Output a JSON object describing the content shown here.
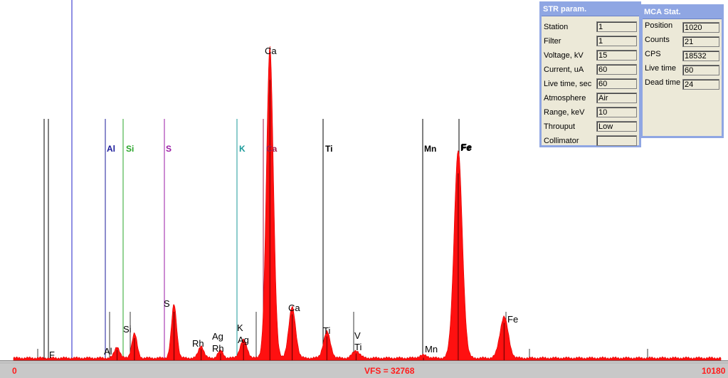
{
  "status_bar": {
    "left": "0",
    "center": "VFS = 32768",
    "right": "10180"
  },
  "str_param": {
    "title": "STR param.",
    "rows": [
      {
        "label": "Station",
        "value": "1"
      },
      {
        "label": "Filter",
        "value": "1"
      },
      {
        "label": "Voltage, kV",
        "value": "15"
      },
      {
        "label": "Current, uA",
        "value": "60"
      },
      {
        "label": "Live time, sec",
        "value": "60"
      },
      {
        "label": "Atmosphere",
        "value": "Air"
      },
      {
        "label": "Range, keV",
        "value": "10"
      },
      {
        "label": "Throuput",
        "value": "Low"
      },
      {
        "label": "Collimator",
        "value": ""
      }
    ]
  },
  "mca_stat": {
    "title": "MCA Stat.",
    "rows": [
      {
        "label": "Position",
        "value": "1020"
      },
      {
        "label": "Counts",
        "value": "21"
      },
      {
        "label": "CPS",
        "value": "18532"
      },
      {
        "label": "Live time",
        "value": "60"
      },
      {
        "label": "Dead time",
        "value": "24"
      }
    ]
  },
  "element_markers": [
    {
      "symbol": "Al",
      "color": "#1a1a9a"
    },
    {
      "symbol": "Si",
      "color": "#2aa52a"
    },
    {
      "symbol": "S",
      "color": "#9a1aa5"
    },
    {
      "symbol": "K",
      "color": "#1a9a9a"
    },
    {
      "symbol": "Ca",
      "color": "#a01a4a"
    },
    {
      "symbol": "Ti",
      "color": "#000000"
    },
    {
      "symbol": "Mn",
      "color": "#000000"
    },
    {
      "symbol": "Fe",
      "color": "#000000"
    }
  ],
  "peak_labels": [
    "F",
    "Al",
    "Si",
    "S",
    "Rh",
    "Rh",
    "Ag",
    "Ag",
    "K",
    "Ca",
    "Ca",
    "Ti",
    "V",
    "Ti",
    "Mn",
    "Fe",
    "Fe"
  ],
  "chart_data": {
    "type": "area",
    "x_range": [
      0,
      10180
    ],
    "vfs": 32768,
    "peaks": [
      {
        "element": "Al",
        "channel": 1490,
        "counts": 1200
      },
      {
        "element": "Si",
        "channel": 1740,
        "counts": 2600
      },
      {
        "element": "S",
        "channel": 2310,
        "counts": 5700
      },
      {
        "element": "Rh",
        "channel": 2700,
        "counts": 1300
      },
      {
        "element": "Ag",
        "channel": 2980,
        "counts": 800
      },
      {
        "element": "K",
        "channel": 3310,
        "counts": 1900
      },
      {
        "element": "Ca",
        "channel": 3690,
        "counts": 33000
      },
      {
        "element": "Ca",
        "channel": 4010,
        "counts": 5400
      },
      {
        "element": "Ti",
        "channel": 4510,
        "counts": 2800
      },
      {
        "element": "Ti",
        "channel": 4930,
        "counts": 800
      },
      {
        "element": "Mn",
        "channel": 5900,
        "counts": 300
      },
      {
        "element": "Fe",
        "channel": 6400,
        "counts": 22000
      },
      {
        "element": "Fe",
        "channel": 7060,
        "counts": 4400
      }
    ]
  }
}
